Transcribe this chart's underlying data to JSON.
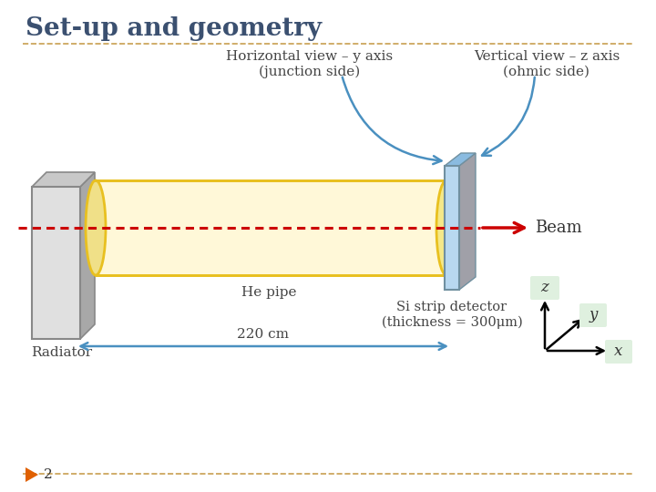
{
  "title": "Set-up and geometry",
  "title_color": "#3B5070",
  "bg_color": "#FFFFFF",
  "title_underline_color": "#C8A050",
  "label_horiz": "Horizontal view – y axis\n(junction side)",
  "label_vert": "Vertical view – z axis\n(ohmic side)",
  "label_beam": "Beam",
  "label_hepipe": "He pipe",
  "label_radiator": "Radiator",
  "label_detector": "Si strip detector\n(thickness = 300μm)",
  "label_220": "220 cm",
  "page_number": "2",
  "pipe_fill_color": "#FFF8D8",
  "pipe_edge_color": "#E8C020",
  "detector_face_color": "#B8D8F0",
  "detector_side_color": "#8ABBE0",
  "detector_back_color": "#A0A0A8",
  "beam_color": "#CC0000",
  "arrow_color": "#4A90C0",
  "coord_label_bg": "#DFF0DF",
  "footer_line_color": "#C8A050",
  "footer_triangle_color": "#E06000",
  "page_num_color": "#333333",
  "rad_front_color": "#E0E0E0",
  "rad_side_color": "#A8A8A8",
  "rad_top_color": "#C8C8C8",
  "rad_edge_color": "#888888"
}
